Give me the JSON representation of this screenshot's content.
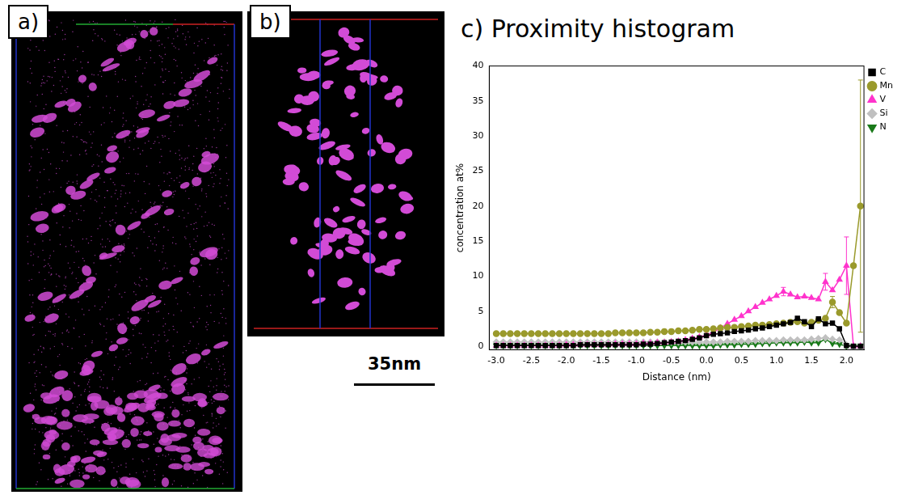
{
  "panels": [
    {
      "label": "a)"
    },
    {
      "label": "b)"
    }
  ],
  "scale_bar": {
    "label": "35nm"
  },
  "chart_data": {
    "type": "line",
    "title": "c) Proximity histogram",
    "x_label": "Distance (nm)",
    "y_label": "concentration at%",
    "x": [
      -3.0,
      -2.9,
      -2.8,
      -2.7,
      -2.6,
      -2.5,
      -2.4,
      -2.3,
      -2.2,
      -2.1,
      -2.0,
      -1.9,
      -1.8,
      -1.7,
      -1.6,
      -1.5,
      -1.4,
      -1.3,
      -1.2,
      -1.1,
      -1.0,
      -0.9,
      -0.8,
      -0.7,
      -0.6,
      -0.5,
      -0.4,
      -0.3,
      -0.2,
      -0.1,
      0.0,
      0.1,
      0.2,
      0.3,
      0.4,
      0.5,
      0.6,
      0.7,
      0.8,
      0.9,
      1.0,
      1.1,
      1.2,
      1.3,
      1.4,
      1.5,
      1.6,
      1.7,
      1.8,
      1.9,
      2.0,
      2.1,
      2.2
    ],
    "xlim": [
      -3.1,
      2.25
    ],
    "xticks": [
      {
        "value": -3,
        "label": "-3.0"
      },
      {
        "value": -2.5,
        "label": "-2.5"
      },
      {
        "value": -2,
        "label": "-2.0"
      },
      {
        "value": -1.5,
        "label": "-1.5"
      },
      {
        "value": -1,
        "label": "-1.0"
      },
      {
        "value": -0.5,
        "label": "-0.5"
      },
      {
        "value": 0,
        "label": "0.0"
      },
      {
        "value": 0.5,
        "label": "0.5"
      },
      {
        "value": 1,
        "label": "1.0"
      },
      {
        "value": 1.5,
        "label": "1.5"
      },
      {
        "value": 2,
        "label": "2.0"
      }
    ],
    "ylim": [
      -0.5,
      40
    ],
    "yticks": [
      0,
      5,
      10,
      15,
      20,
      25,
      30,
      35,
      40
    ],
    "grid": false,
    "legend": "right",
    "series": [
      {
        "name": "C",
        "color": "#000000",
        "marker": "square",
        "line_style": "solid",
        "values": [
          0.1,
          0.1,
          0.1,
          0.1,
          0.1,
          0.1,
          0.1,
          0.1,
          0.1,
          0.1,
          0.1,
          0.1,
          0.2,
          0.2,
          0.2,
          0.2,
          0.2,
          0.2,
          0.2,
          0.2,
          0.2,
          0.3,
          0.3,
          0.4,
          0.5,
          0.6,
          0.7,
          0.8,
          1.0,
          1.2,
          1.5,
          1.7,
          1.8,
          1.9,
          2.1,
          2.2,
          2.3,
          2.5,
          2.6,
          2.8,
          3.0,
          3.2,
          3.4,
          4.0,
          3.5,
          2.8,
          3.9,
          3.2,
          3.3,
          2.5,
          0.1,
          0.0,
          0.0
        ]
      },
      {
        "name": "Mn",
        "color": "#9a9a2c",
        "marker": "circle",
        "line_style": "solid",
        "values": [
          1.8,
          1.8,
          1.8,
          1.8,
          1.8,
          1.8,
          1.8,
          1.8,
          1.8,
          1.8,
          1.8,
          1.8,
          1.8,
          1.8,
          1.8,
          1.8,
          1.8,
          1.9,
          1.9,
          1.9,
          1.9,
          1.9,
          2.0,
          2.0,
          2.1,
          2.1,
          2.2,
          2.2,
          2.3,
          2.4,
          2.4,
          2.5,
          2.6,
          2.7,
          2.7,
          2.8,
          2.9,
          3.0,
          3.0,
          3.1,
          3.2,
          3.3,
          3.4,
          3.5,
          3.3,
          3.4,
          3.7,
          4.0,
          6.3,
          4.8,
          3.3,
          11.5,
          20.0
        ],
        "errors": [
          null,
          null,
          null,
          null,
          null,
          null,
          null,
          null,
          null,
          null,
          null,
          null,
          null,
          null,
          null,
          null,
          null,
          null,
          null,
          null,
          null,
          null,
          null,
          null,
          null,
          null,
          null,
          null,
          null,
          null,
          null,
          null,
          null,
          null,
          null,
          null,
          null,
          null,
          null,
          null,
          null,
          null,
          null,
          null,
          null,
          null,
          null,
          null,
          0.8,
          null,
          null,
          null,
          18
        ]
      },
      {
        "name": "V",
        "color": "#ff33cc",
        "marker": "triangle",
        "line_style": "solid",
        "values": [
          0.1,
          0.1,
          0.1,
          0.1,
          0.1,
          0.1,
          0.1,
          0.1,
          0.1,
          0.1,
          0.2,
          0.2,
          0.2,
          0.2,
          0.2,
          0.2,
          0.2,
          0.3,
          0.3,
          0.3,
          0.3,
          0.4,
          0.4,
          0.5,
          0.5,
          0.6,
          0.7,
          0.9,
          1.1,
          1.3,
          1.6,
          2.0,
          2.6,
          3.2,
          3.8,
          4.3,
          5.0,
          5.6,
          6.2,
          6.7,
          7.2,
          7.8,
          7.4,
          7.0,
          7.1,
          6.9,
          6.7,
          9.2,
          8.0,
          9.5,
          11.5,
          0.0,
          0.0
        ],
        "errors": [
          null,
          null,
          null,
          null,
          null,
          null,
          null,
          null,
          null,
          null,
          null,
          null,
          null,
          null,
          null,
          null,
          null,
          null,
          null,
          null,
          null,
          null,
          null,
          null,
          null,
          null,
          null,
          null,
          null,
          null,
          null,
          null,
          null,
          null,
          null,
          null,
          null,
          null,
          null,
          null,
          null,
          0.6,
          null,
          null,
          null,
          null,
          null,
          1.2,
          null,
          null,
          4.1,
          null,
          null
        ]
      },
      {
        "name": "Si",
        "color": "#c0c0c0",
        "marker": "diamond",
        "line_style": "solid",
        "values": [
          0.6,
          0.6,
          0.6,
          0.6,
          0.6,
          0.6,
          0.6,
          0.6,
          0.6,
          0.6,
          0.6,
          0.6,
          0.6,
          0.6,
          0.6,
          0.6,
          0.6,
          0.6,
          0.6,
          0.6,
          0.6,
          0.6,
          0.6,
          0.6,
          0.6,
          0.6,
          0.6,
          0.6,
          0.6,
          0.6,
          0.6,
          0.6,
          0.6,
          0.7,
          0.7,
          0.7,
          0.7,
          0.8,
          0.8,
          0.8,
          0.8,
          0.9,
          0.9,
          0.9,
          0.9,
          1.0,
          1.1,
          1.2,
          1.0,
          0.9,
          0.2,
          0.0,
          0.0
        ]
      },
      {
        "name": "N",
        "color": "#1a7a1a",
        "marker": "triangle-down",
        "line_style": "solid",
        "values": [
          0.1,
          0.1,
          0.1,
          0.1,
          0.1,
          0.1,
          0.1,
          0.1,
          0.1,
          0.1,
          0.1,
          0.1,
          0.1,
          0.1,
          0.1,
          0.1,
          0.1,
          0.1,
          0.1,
          0.1,
          0.1,
          0.1,
          0.1,
          0.1,
          0.1,
          0.1,
          0.1,
          0.1,
          0.1,
          0.1,
          0.1,
          0.1,
          0.2,
          0.2,
          0.2,
          0.3,
          0.3,
          0.3,
          0.4,
          0.4,
          0.5,
          0.5,
          0.5,
          0.5,
          0.6,
          0.5,
          0.5,
          1.0,
          0.4,
          0.3,
          0.0,
          0.0,
          0.0
        ]
      }
    ]
  }
}
